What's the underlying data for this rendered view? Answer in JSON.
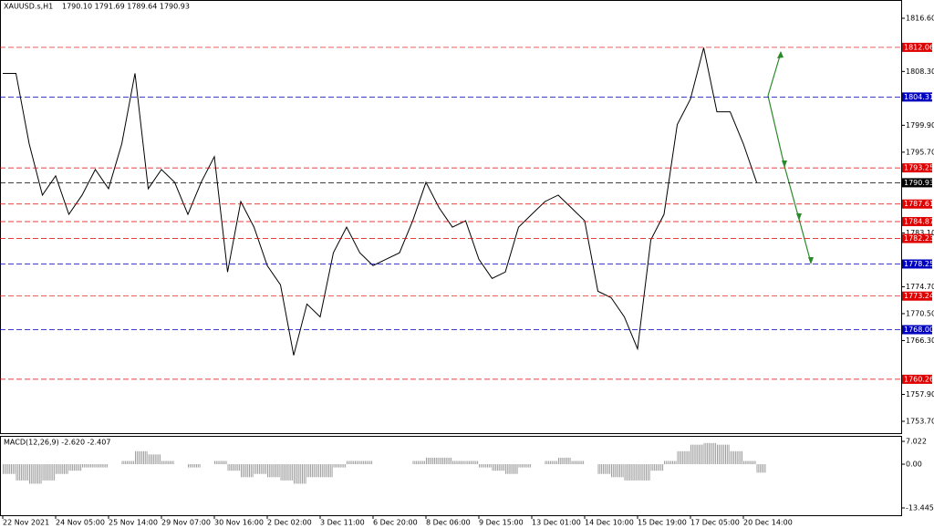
{
  "chart_data": [
    {
      "type": "line",
      "title": "XAUUSD.s,H1",
      "subtitle": "1790.10 1791.69 1789.64 1790.93",
      "categories": [
        "22 Nov 2021",
        null,
        null,
        null,
        "24 Nov 05:00",
        null,
        null,
        null,
        "25 Nov 14:00",
        null,
        null,
        null,
        "29 Nov 07:00",
        null,
        null,
        null,
        "30 Nov 16:00",
        null,
        null,
        null,
        "2 Dec 02:00",
        null,
        null,
        null,
        "3 Dec 11:00",
        null,
        null,
        null,
        "6 Dec 20:00",
        null,
        null,
        null,
        "8 Dec 06:00",
        null,
        null,
        null,
        "9 Dec 15:00",
        null,
        null,
        null,
        "13 Dec 01:00",
        null,
        null,
        null,
        "14 Dec 10:00",
        null,
        null,
        null,
        "15 Dec 19:00",
        null,
        null,
        null,
        "17 Dec 05:00",
        null,
        null,
        null,
        "20 Dec 14:00",
        null
      ],
      "values": [
        1808,
        1808,
        1797,
        1789,
        1792,
        1786,
        1789,
        1793,
        1790,
        1797,
        1808,
        1790,
        1793,
        1791,
        1786,
        1791,
        1795,
        1777,
        1788,
        1784,
        1778,
        1775,
        1764,
        1772,
        1770,
        1780,
        1784,
        1780,
        1778,
        1779,
        1780,
        1785,
        1791,
        1787,
        1784,
        1785,
        1779,
        1776,
        1777,
        1784,
        1786,
        1788,
        1789,
        1787,
        1785,
        1774,
        1773,
        1770,
        1765,
        1782,
        1786,
        1800,
        1804,
        1812,
        1802,
        1802,
        1797,
        1791
      ],
      "color": "#000000",
      "ylim": [
        1751.85,
        1819.45
      ],
      "yticks": [
        {
          "value": 1816.6,
          "label": "1816.60"
        },
        {
          "value": 1808.3,
          "label": "1808.30"
        },
        {
          "value": 1799.9,
          "label": "1799.90"
        },
        {
          "value": 1795.7,
          "label": "1795.70"
        },
        {
          "value": 1783.1,
          "label": "1783.10"
        },
        {
          "value": 1774.7,
          "label": "1774.70"
        },
        {
          "value": 1770.5,
          "label": "1770.50"
        },
        {
          "value": 1766.3,
          "label": "1766.30"
        },
        {
          "value": 1757.9,
          "label": "1757.90"
        },
        {
          "value": 1753.7,
          "label": "1753.70"
        }
      ],
      "levels": [
        {
          "value": 1812.06,
          "color": "#e00000"
        },
        {
          "value": 1804.31,
          "color": "#0000c0"
        },
        {
          "value": 1793.25,
          "color": "#e00000"
        },
        {
          "value": 1790.93,
          "color": "#000000"
        },
        {
          "value": 1787.61,
          "color": "#e00000"
        },
        {
          "value": 1784.87,
          "color": "#e00000"
        },
        {
          "value": 1782.23,
          "color": "#e00000"
        },
        {
          "value": 1778.25,
          "color": "#0000c0"
        },
        {
          "value": 1773.24,
          "color": "#e00000"
        },
        {
          "value": {
            "value": 1768.0,
            "label": "1768.00"
          },
          "color": "#0000c0"
        },
        {
          "value": 1760.26,
          "color": "#e00000"
        }
      ]
    },
    {
      "type": "bar",
      "title": "MACD(12,26,9) -2.620 -2.407",
      "values": [
        -3,
        -5,
        -6,
        -5,
        -3,
        -2,
        -1,
        -1,
        0,
        1,
        4,
        3,
        1,
        0,
        -1,
        0,
        1,
        -2,
        -4,
        -3,
        -4,
        -5,
        -6,
        -4,
        -4,
        -1,
        1,
        1,
        0,
        0,
        0,
        1,
        2,
        2,
        1,
        1,
        -1,
        -2,
        -3,
        -1,
        0,
        1,
        2,
        1,
        0,
        -3,
        -4,
        -5,
        -5,
        -2,
        1,
        4,
        6,
        6.5,
        6,
        4,
        1,
        -2.6
      ],
      "color": "#a0a0a0",
      "ylim": [
        -15.69,
        8.7
      ],
      "yticks": [
        7.022,
        {
          "value": 0,
          "label": "0.00"
        },
        -13.445
      ]
    }
  ]
}
